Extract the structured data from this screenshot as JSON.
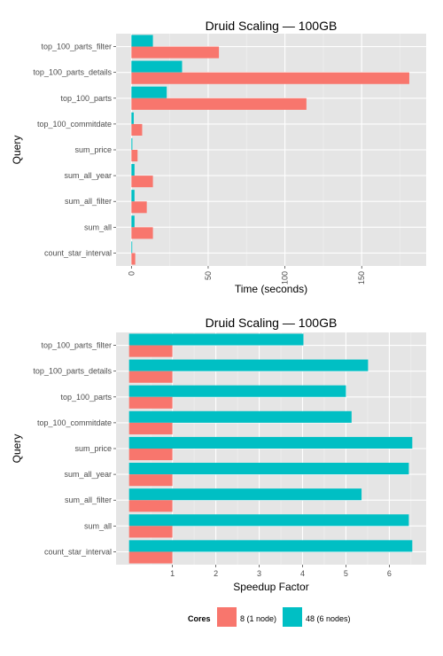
{
  "chart_data": [
    {
      "type": "bar",
      "orientation": "horizontal",
      "title": "Druid Scaling — 100GB",
      "xlabel": "Time (seconds)",
      "ylabel": "Query",
      "categories": [
        "top_100_parts_filter",
        "top_100_parts_details",
        "top_100_parts",
        "top_100_commitdate",
        "sum_price",
        "sum_all_year",
        "sum_all_filter",
        "sum_all",
        "count_star_interval"
      ],
      "series": [
        {
          "name": "8 (1 node)",
          "color": "#f8766d",
          "values": [
            57,
            181,
            114,
            7,
            4,
            14,
            10,
            14,
            2.5
          ]
        },
        {
          "name": "48 (6 nodes)",
          "color": "#00bfc4",
          "values": [
            14,
            33,
            23,
            1.5,
            0.6,
            2,
            2,
            2,
            0.5
          ]
        }
      ],
      "xlim": [
        -10,
        192
      ],
      "xticks": [
        0,
        50,
        100,
        150
      ],
      "tick_label_rotation": -90,
      "grid": true
    },
    {
      "type": "bar",
      "orientation": "horizontal",
      "title": "Druid Scaling — 100GB",
      "xlabel": "Speedup Factor",
      "ylabel": "Query",
      "categories": [
        "top_100_parts_filter",
        "top_100_parts_details",
        "top_100_parts",
        "top_100_commitdate",
        "sum_price",
        "sum_all_year",
        "sum_all_filter",
        "sum_all",
        "count_star_interval"
      ],
      "series": [
        {
          "name": "8 (1 node)",
          "color": "#f8766d",
          "values": [
            1,
            1,
            1,
            1,
            1,
            1,
            1,
            1,
            1
          ]
        },
        {
          "name": "48 (6 nodes)",
          "color": "#00bfc4",
          "values": [
            4.02,
            5.51,
            5.0,
            5.13,
            6.53,
            6.45,
            5.36,
            6.45,
            6.53
          ]
        }
      ],
      "xlim": [
        -0.3,
        6.85
      ],
      "xticks": [
        1,
        2,
        3,
        4,
        5,
        6
      ],
      "grid": true
    }
  ],
  "legend": {
    "title": "Cores",
    "position": "bottom",
    "items": [
      {
        "label": "8 (1 node)",
        "color": "#f8766d"
      },
      {
        "label": "48 (6 nodes)",
        "color": "#00bfc4"
      }
    ]
  }
}
